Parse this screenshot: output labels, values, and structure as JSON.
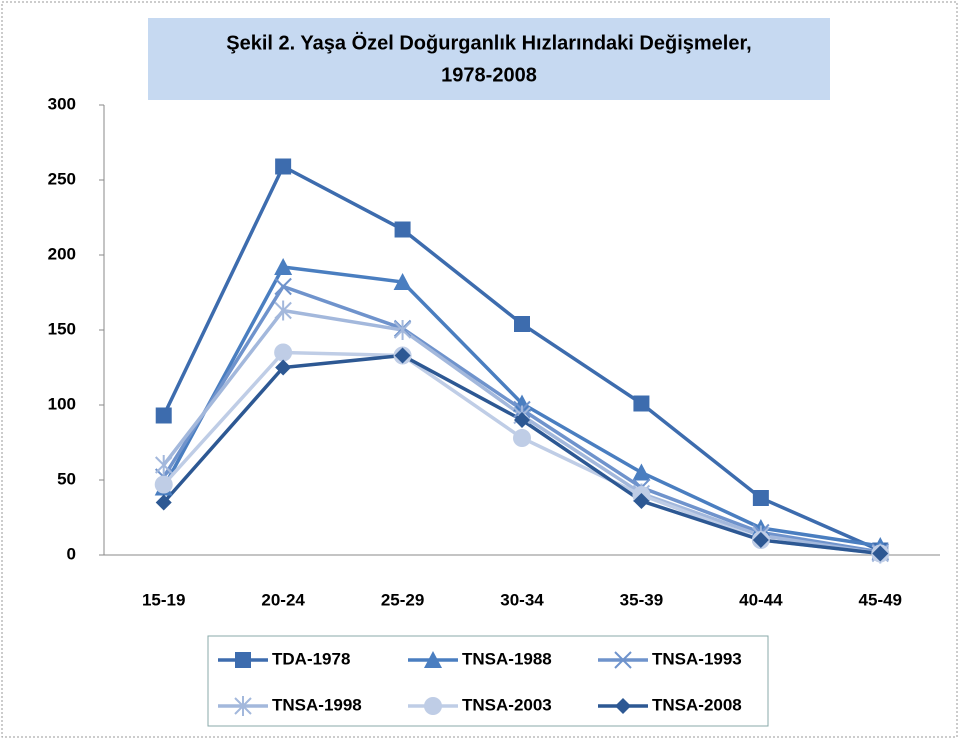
{
  "chart_data": {
    "type": "line",
    "title": [
      "Şekil 2. Yaşa Özel Doğurganlık Hızlarındaki Değişmeler,",
      "1978-2008"
    ],
    "categories": [
      "15-19",
      "20-24",
      "25-29",
      "30-34",
      "35-39",
      "40-44",
      "45-49"
    ],
    "series": [
      {
        "name": "TDA-1978",
        "color": "#3d6cae",
        "marker": "square",
        "values": [
          93,
          259,
          217,
          154,
          101,
          38,
          3
        ]
      },
      {
        "name": "TNSA-1988",
        "color": "#4a7ec0",
        "marker": "triangle",
        "values": [
          45,
          192,
          182,
          101,
          55,
          18,
          6
        ]
      },
      {
        "name": "TNSA-1993",
        "color": "#6f93cc",
        "marker": "x",
        "values": [
          52,
          179,
          151,
          97,
          45,
          15,
          2
        ]
      },
      {
        "name": "TNSA-1998",
        "color": "#a3b8dc",
        "marker": "asterisk",
        "values": [
          60,
          163,
          150,
          93,
          41,
          13,
          1
        ]
      },
      {
        "name": "TNSA-2003",
        "color": "#bfcde6",
        "marker": "circle",
        "values": [
          47,
          135,
          133,
          78,
          40,
          10,
          1
        ]
      },
      {
        "name": "TNSA-2008",
        "color": "#2d5893",
        "marker": "diamond",
        "values": [
          35,
          125,
          133,
          90,
          36,
          10,
          1
        ]
      }
    ],
    "ylim": [
      0,
      300
    ],
    "yticks": [
      0,
      50,
      100,
      150,
      200,
      250,
      300
    ],
    "grid": false
  }
}
